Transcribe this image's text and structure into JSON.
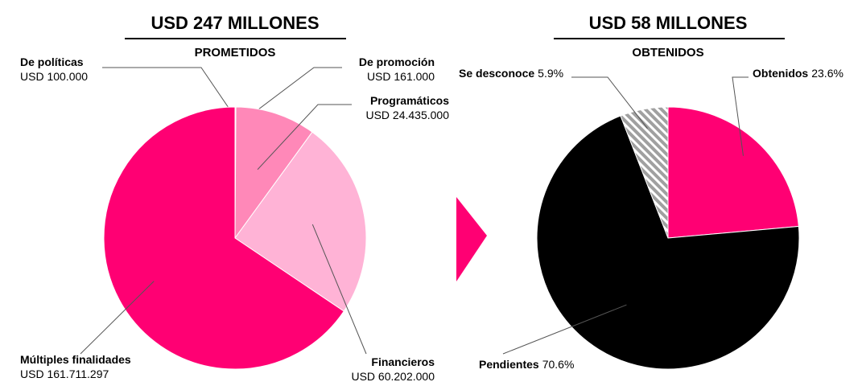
{
  "chart_data": [
    {
      "type": "pie",
      "title": "USD 247 MILLONES",
      "subtitle": "PROMETIDOS",
      "categories": [
        "De políticas",
        "De promoción",
        "Programáticos",
        "Financieros",
        "Múltiples finalidades"
      ],
      "values": [
        100000,
        161000,
        24435000,
        60202000,
        161711297
      ],
      "value_labels": [
        "USD 100.000",
        "USD 161.000",
        "USD 24.435.000",
        "USD 60.202.000",
        "USD 161.711.297"
      ],
      "colors": [
        "#ffd6e8",
        "#ffc2dc",
        "#ff88b8",
        "#ffb3d6",
        "#ff0073"
      ]
    },
    {
      "type": "pie",
      "title": "USD 58 MILLONES",
      "subtitle": "OBTENIDOS",
      "categories": [
        "Obtenidos",
        "Pendientes",
        "Se desconoce"
      ],
      "values": [
        23.6,
        70.6,
        5.9
      ],
      "value_labels": [
        "23.6%",
        "70.6%",
        "5.9%"
      ],
      "colors": [
        "#ff0073",
        "#000000",
        "#a0a0a0"
      ],
      "hatched": [
        false,
        false,
        true
      ]
    }
  ]
}
